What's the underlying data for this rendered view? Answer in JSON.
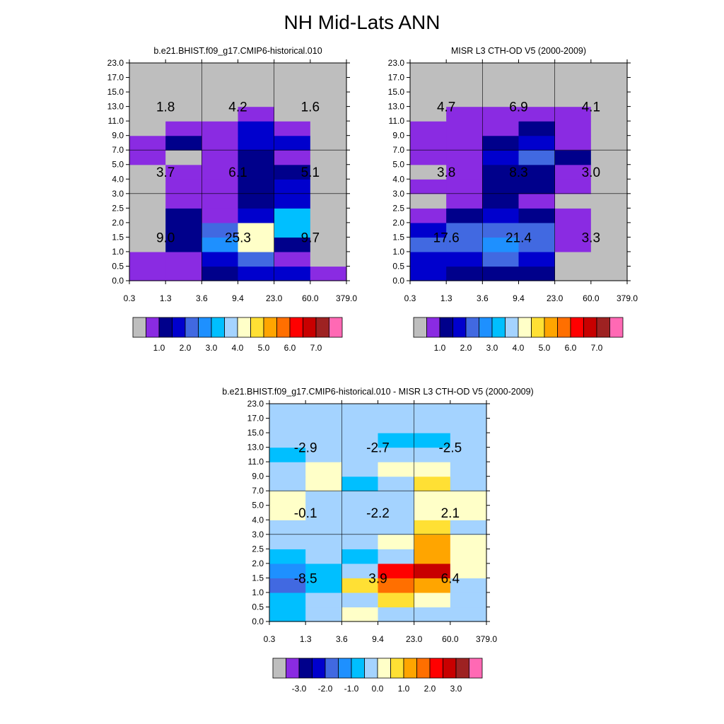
{
  "title": "NH Mid-Lats ANN",
  "palette": [
    "#bebebe",
    "#8a2be2",
    "#00008b",
    "#0000cd",
    "#4169e1",
    "#1e90ff",
    "#00bfff",
    "#a4d3ff",
    "#ffffc8",
    "#ffe034",
    "#ffa500",
    "#ff6f00",
    "#ff0000",
    "#c80000",
    "#9e2222",
    "#ff69b4"
  ],
  "chart_data": [
    {
      "type": "heatmap",
      "title": "b.e21.BHIST.f09_g17.CMIP6-historical.010",
      "x_tick_labels": [
        "0.3",
        "1.3",
        "3.6",
        "9.4",
        "23.0",
        "60.0",
        "379.0"
      ],
      "y_tick_labels": [
        "0.0",
        "0.5",
        "1.0",
        "1.5",
        "2.0",
        "2.5",
        "3.0",
        "4.0",
        "5.0",
        "7.0",
        "9.0",
        "11.0",
        "13.0",
        "15.0",
        "17.0",
        "23.0"
      ],
      "grid": "6 optical-depth bins x 15 cloud-top-height bins, rows listed bottom to top, values are colour-bar indices",
      "cells": [
        [
          1,
          1,
          2,
          3,
          3,
          1
        ],
        [
          1,
          1,
          3,
          4,
          1,
          0
        ],
        [
          0,
          2,
          5,
          8,
          2,
          0
        ],
        [
          0,
          2,
          4,
          8,
          6,
          0
        ],
        [
          0,
          2,
          1,
          3,
          6,
          0
        ],
        [
          0,
          1,
          1,
          2,
          3,
          0
        ],
        [
          0,
          1,
          1,
          2,
          3,
          0
        ],
        [
          0,
          1,
          1,
          2,
          2,
          0
        ],
        [
          1,
          0,
          1,
          2,
          1,
          0
        ],
        [
          1,
          2,
          1,
          3,
          3,
          0
        ],
        [
          0,
          1,
          1,
          3,
          1,
          0
        ],
        [
          0,
          0,
          0,
          1,
          0,
          0
        ],
        [
          0,
          0,
          0,
          0,
          0,
          0
        ],
        [
          0,
          0,
          0,
          0,
          0,
          0
        ],
        [
          0,
          0,
          0,
          0,
          0,
          0
        ]
      ],
      "region_labels": {
        "high": [
          "1.8",
          "4.2",
          "1.6"
        ],
        "mid": [
          "3.7",
          "6.1",
          "5.1"
        ],
        "low": [
          "9.0",
          "25.3",
          "9.7"
        ]
      },
      "colorbar_labels": [
        "1.0",
        "2.0",
        "3.0",
        "4.0",
        "5.0",
        "6.0",
        "7.0"
      ]
    },
    {
      "type": "heatmap",
      "title": "MISR L3 CTH-OD V5 (2000-2009)",
      "x_tick_labels": [
        "0.3",
        "1.3",
        "3.6",
        "9.4",
        "23.0",
        "60.0",
        "379.0"
      ],
      "y_tick_labels": [
        "0.0",
        "0.5",
        "1.0",
        "1.5",
        "2.0",
        "2.5",
        "3.0",
        "4.0",
        "5.0",
        "7.0",
        "9.0",
        "11.0",
        "13.0",
        "15.0",
        "17.0",
        "23.0"
      ],
      "grid": "6 optical-depth bins x 15 cloud-top-height bins, rows listed bottom to top, values are colour-bar indices",
      "cells": [
        [
          3,
          2,
          2,
          2,
          0,
          0
        ],
        [
          3,
          3,
          4,
          3,
          0,
          0
        ],
        [
          4,
          4,
          5,
          4,
          1,
          0
        ],
        [
          3,
          4,
          4,
          4,
          1,
          0
        ],
        [
          1,
          2,
          3,
          2,
          1,
          0
        ],
        [
          0,
          1,
          2,
          1,
          0,
          0
        ],
        [
          1,
          1,
          2,
          2,
          1,
          0
        ],
        [
          0,
          1,
          2,
          2,
          1,
          0
        ],
        [
          1,
          1,
          3,
          4,
          2,
          0
        ],
        [
          1,
          1,
          2,
          3,
          1,
          0
        ],
        [
          1,
          1,
          1,
          2,
          1,
          0
        ],
        [
          0,
          1,
          1,
          1,
          1,
          0
        ],
        [
          0,
          0,
          0,
          0,
          0,
          0
        ],
        [
          0,
          0,
          0,
          0,
          0,
          0
        ],
        [
          0,
          0,
          0,
          0,
          0,
          0
        ]
      ],
      "region_labels": {
        "high": [
          "4.7",
          "6.9",
          "4.1"
        ],
        "mid": [
          "3.8",
          "8.3",
          "3.0"
        ],
        "low": [
          "17.6",
          "21.4",
          "3.3"
        ]
      },
      "colorbar_labels": [
        "1.0",
        "2.0",
        "3.0",
        "4.0",
        "5.0",
        "6.0",
        "7.0"
      ]
    },
    {
      "type": "heatmap",
      "title": "b.e21.BHIST.f09_g17.CMIP6-historical.010 - MISR L3 CTH-OD V5 (2000-2009)",
      "x_tick_labels": [
        "0.3",
        "1.3",
        "3.6",
        "9.4",
        "23.0",
        "60.0",
        "379.0"
      ],
      "y_tick_labels": [
        "0.0",
        "0.5",
        "1.0",
        "1.5",
        "2.0",
        "2.5",
        "3.0",
        "4.0",
        "5.0",
        "7.0",
        "9.0",
        "11.0",
        "13.0",
        "15.0",
        "17.0",
        "23.0"
      ],
      "grid": "6 optical-depth bins x 15 cloud-top-height bins, rows listed bottom to top, values are colour-bar indices",
      "cells": [
        [
          6,
          7,
          8,
          7,
          7,
          7
        ],
        [
          6,
          7,
          7,
          9,
          8,
          7
        ],
        [
          4,
          6,
          9,
          11,
          10,
          7
        ],
        [
          5,
          6,
          7,
          12,
          13,
          8
        ],
        [
          6,
          7,
          6,
          7,
          10,
          8
        ],
        [
          7,
          7,
          7,
          8,
          10,
          8
        ],
        [
          7,
          7,
          7,
          7,
          9,
          7
        ],
        [
          8,
          7,
          7,
          7,
          8,
          8
        ],
        [
          8,
          7,
          7,
          7,
          8,
          8
        ],
        [
          7,
          8,
          6,
          7,
          9,
          7
        ],
        [
          7,
          8,
          7,
          8,
          8,
          7
        ],
        [
          6,
          7,
          7,
          7,
          7,
          7
        ],
        [
          7,
          7,
          7,
          6,
          6,
          7
        ],
        [
          7,
          7,
          7,
          7,
          7,
          7
        ],
        [
          7,
          7,
          7,
          7,
          7,
          7
        ]
      ],
      "region_labels": {
        "high": [
          "-2.9",
          "-2.7",
          "-2.5"
        ],
        "mid": [
          "-0.1",
          "-2.2",
          "2.1"
        ],
        "low": [
          "-8.5",
          "3.9",
          "6.4"
        ]
      },
      "colorbar_labels": [
        "-3.0",
        "-2.0",
        "-1.0",
        "0.0",
        "1.0",
        "2.0",
        "3.0"
      ]
    }
  ]
}
